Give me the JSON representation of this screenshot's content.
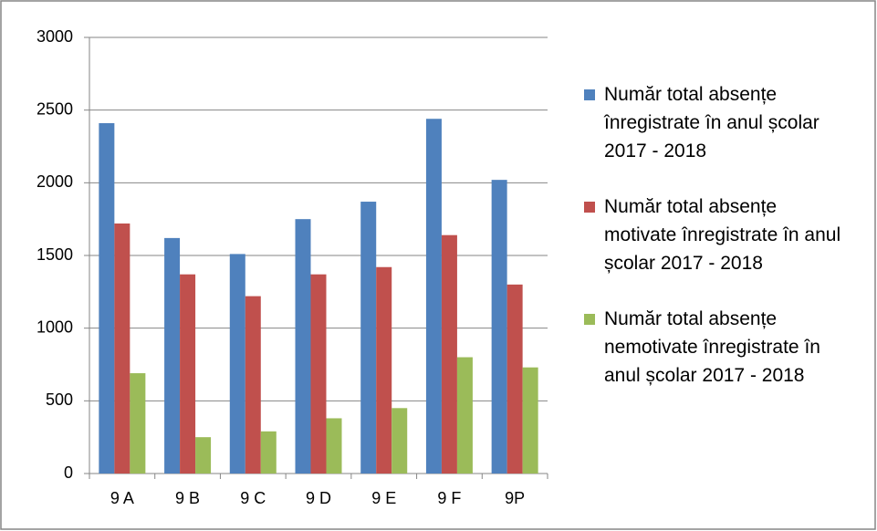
{
  "chart_data": {
    "type": "bar",
    "categories": [
      "9 A",
      "9 B",
      "9 C",
      "9 D",
      "9 E",
      "9 F",
      "9P"
    ],
    "series": [
      {
        "name": "Număr total absențe înregistrate în anul școlar 2017 - 2018",
        "color": "#4f81bd",
        "values": [
          2410,
          1620,
          1510,
          1750,
          1870,
          2440,
          2020
        ]
      },
      {
        "name": "Număr total absențe motivate înregistrate în anul școlar 2017 - 2018",
        "color": "#c0504d",
        "values": [
          1720,
          1370,
          1220,
          1370,
          1420,
          1640,
          1300
        ]
      },
      {
        "name": "Număr total absențe nemotivate înregistrate în anul școlar 2017 - 2018",
        "color": "#9bbb59",
        "values": [
          690,
          250,
          290,
          380,
          450,
          800,
          730
        ]
      }
    ],
    "ylim": [
      0,
      3000
    ],
    "yticks": [
      0,
      500,
      1000,
      1500,
      2000,
      2500,
      3000
    ],
    "grid": true,
    "legend": "right"
  }
}
